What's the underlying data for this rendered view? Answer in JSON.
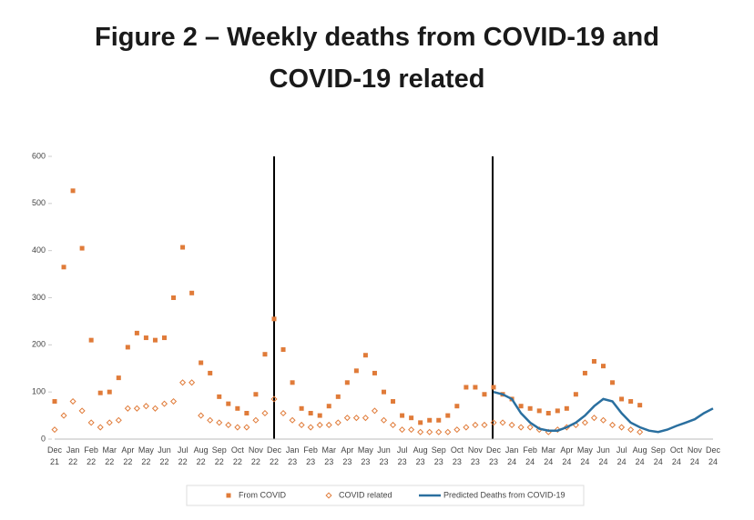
{
  "chart_data": {
    "type": "scatter",
    "title": "Figure 2 – Weekly deaths from COVID-19 and COVID-19 related",
    "categories": [
      "Dec 21",
      null,
      "Jan 22",
      null,
      "Feb 22",
      null,
      "Mar 22",
      null,
      "Apr 22",
      null,
      "May 22",
      null,
      "Jun 22",
      null,
      "Jul 22",
      null,
      "Aug 22",
      null,
      "Sep 22",
      null,
      "Oct 22",
      null,
      "Nov 22",
      null,
      "Dec 22",
      null,
      "Jan 23",
      null,
      "Feb 23",
      null,
      "Mar 23",
      null,
      "Apr 23",
      null,
      "May 23",
      null,
      "Jun 23",
      null,
      "Jul 23",
      null,
      "Aug 23",
      null,
      "Sep 23",
      null,
      "Oct 23",
      null,
      "Nov 23",
      null,
      "Dec 23",
      null,
      "Jan 24",
      null,
      "Feb 24",
      null,
      "Mar 24",
      null,
      "Apr 24",
      null,
      "May 24",
      null,
      "Jun 24",
      null,
      "Jul 24",
      null,
      "Aug 24",
      null,
      "Sep 24",
      null,
      "Oct 24",
      null,
      "Nov 24",
      null,
      "Dec 24"
    ],
    "series": [
      {
        "name": "From COVID",
        "color": "#e07b39",
        "marker": "square",
        "values": [
          80,
          365,
          527,
          405,
          210,
          98,
          100,
          130,
          195,
          225,
          215,
          210,
          215,
          300,
          407,
          310,
          162,
          140,
          90,
          75,
          65,
          55,
          95,
          180,
          255,
          190,
          120,
          65,
          55,
          50,
          70,
          90,
          120,
          145,
          178,
          140,
          100,
          80,
          50,
          45,
          35,
          40,
          40,
          50,
          70,
          110,
          110,
          95,
          110,
          95,
          85,
          70,
          65,
          60,
          55,
          60,
          65,
          95,
          140,
          165,
          155,
          120,
          85,
          80,
          72,
          null,
          null,
          null,
          null,
          null,
          null,
          null,
          null
        ]
      },
      {
        "name": "COVID related",
        "color": "#e07b39",
        "marker": "diamond",
        "values": [
          20,
          50,
          80,
          60,
          35,
          25,
          35,
          40,
          65,
          65,
          70,
          65,
          75,
          80,
          120,
          120,
          50,
          40,
          35,
          30,
          25,
          25,
          40,
          55,
          85,
          55,
          40,
          30,
          25,
          30,
          30,
          35,
          45,
          45,
          45,
          60,
          40,
          30,
          20,
          20,
          15,
          15,
          15,
          15,
          20,
          25,
          30,
          30,
          35,
          35,
          30,
          25,
          25,
          20,
          15,
          20,
          25,
          30,
          35,
          45,
          40,
          30,
          25,
          20,
          15,
          null,
          null,
          null,
          null,
          null,
          null,
          null,
          null
        ]
      },
      {
        "name": "Predicted Deaths from COVID-19",
        "color": "#2a6f9f",
        "marker": "line",
        "values": [
          null,
          null,
          null,
          null,
          null,
          null,
          null,
          null,
          null,
          null,
          null,
          null,
          null,
          null,
          null,
          null,
          null,
          null,
          null,
          null,
          null,
          null,
          null,
          null,
          null,
          null,
          null,
          null,
          null,
          null,
          null,
          null,
          null,
          null,
          null,
          null,
          null,
          null,
          null,
          null,
          null,
          null,
          null,
          null,
          null,
          null,
          null,
          null,
          100,
          95,
          85,
          55,
          35,
          22,
          18,
          18,
          25,
          35,
          50,
          70,
          85,
          80,
          55,
          35,
          25,
          18,
          15,
          20,
          28,
          35,
          42,
          55,
          65
        ]
      }
    ],
    "ylim": [
      0,
      600
    ],
    "yticks": [
      0,
      100,
      200,
      300,
      400,
      500,
      600
    ],
    "grid": false,
    "legend": "bottom"
  }
}
